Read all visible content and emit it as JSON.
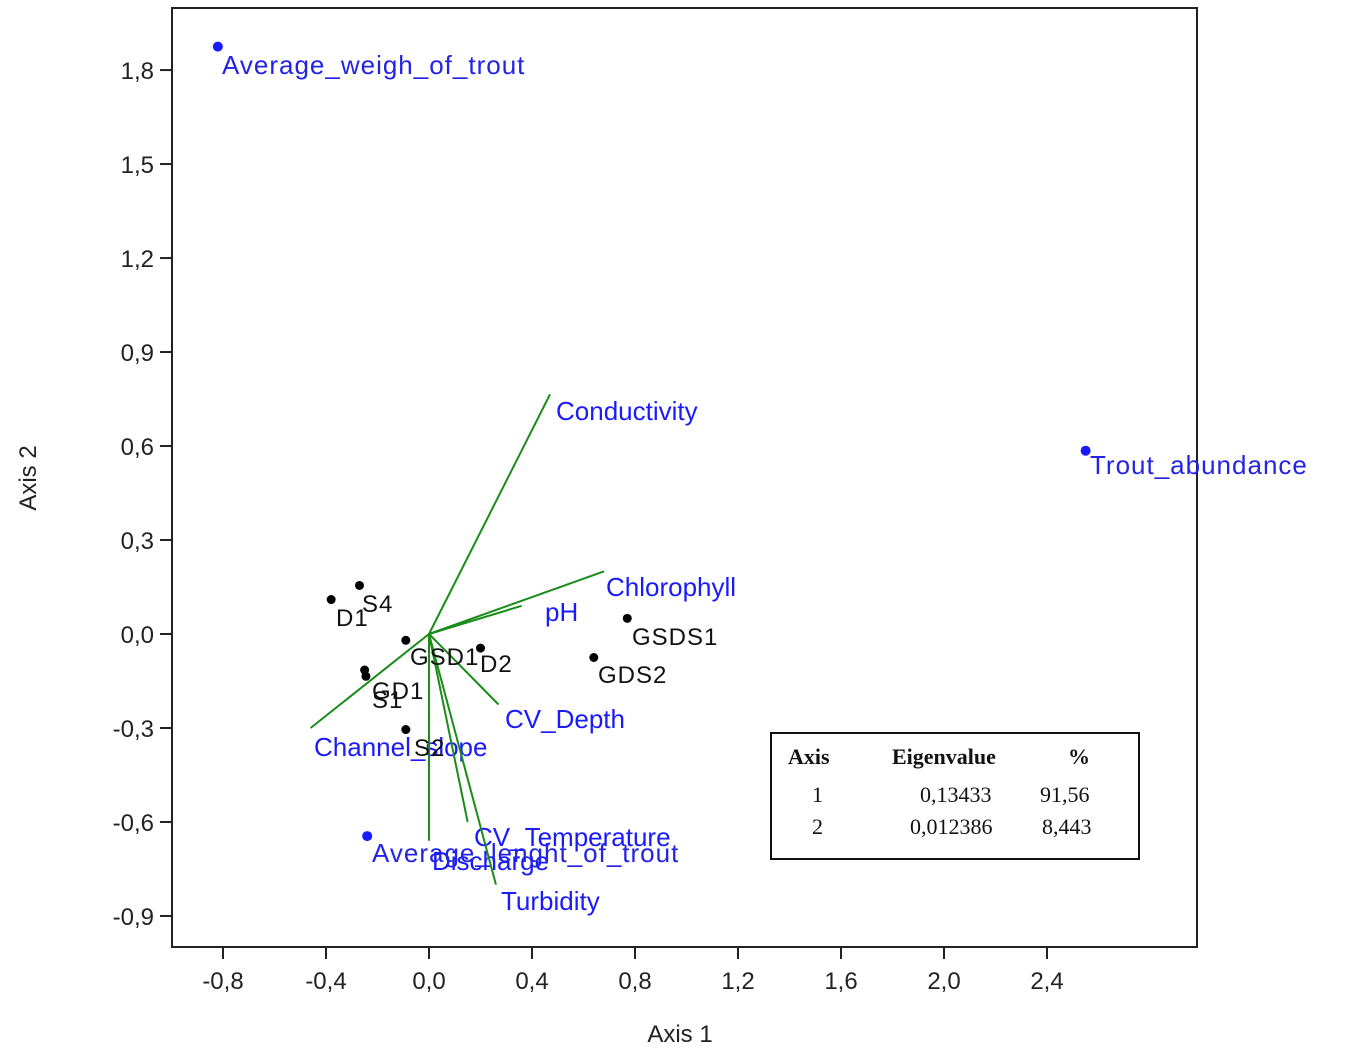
{
  "chart_data": {
    "type": "scatter",
    "subtype": "CCA biplot",
    "xlabel": "Axis 1",
    "ylabel": "Axis 2",
    "xlim": [
      -1.0,
      3.0
    ],
    "ylim": [
      -1.0,
      1.95
    ],
    "xticks": [
      "-0,8",
      "-0,4",
      "0,0",
      "0,4",
      "0,8",
      "1,2",
      "1,6",
      "2,0",
      "2,4"
    ],
    "xtick_values": [
      -0.8,
      -0.4,
      0.0,
      0.4,
      0.8,
      1.2,
      1.6,
      2.0,
      2.4
    ],
    "yticks": [
      "1,8",
      "1,5",
      "1,2",
      "0,9",
      "0,6",
      "0,3",
      "0,0",
      "-0,3",
      "-0,6",
      "-0,9"
    ],
    "ytick_values": [
      1.8,
      1.5,
      1.2,
      0.9,
      0.6,
      0.3,
      0.0,
      -0.3,
      -0.6,
      -0.9
    ],
    "grid": false,
    "colors": {
      "sites": "#000000",
      "species": "#1a1aff",
      "vectors": "#1a8c1a",
      "labels": "#1a1aff"
    },
    "sites": [
      {
        "label": "S4",
        "x": -0.27,
        "y": 0.155
      },
      {
        "label": "D1",
        "x": -0.38,
        "y": 0.11
      },
      {
        "label": "GSD1",
        "x": -0.09,
        "y": -0.02
      },
      {
        "label": "D2",
        "x": 0.2,
        "y": -0.045
      },
      {
        "label": "GD1",
        "x": -0.25,
        "y": -0.115
      },
      {
        "label": "S1",
        "x": -0.245,
        "y": -0.135
      },
      {
        "label": "S2",
        "x": -0.09,
        "y": -0.305
      },
      {
        "label": "GSDS1",
        "x": 0.77,
        "y": 0.05
      },
      {
        "label": "GDS2",
        "x": 0.64,
        "y": -0.075
      }
    ],
    "species": [
      {
        "label": "Average_weigh_of_trout",
        "x": -0.82,
        "y": 1.875
      },
      {
        "label": "Trout_abundance",
        "x": 2.55,
        "y": 0.585
      },
      {
        "label": "Average_lenght_of_trout",
        "x": -0.24,
        "y": -0.645
      }
    ],
    "vectors": [
      {
        "label": "Conductivity",
        "x": 0.47,
        "y": 0.765
      },
      {
        "label": "Chlorophyll",
        "x": 0.68,
        "y": 0.2
      },
      {
        "label": "pH",
        "x": 0.36,
        "y": 0.09
      },
      {
        "label": "CV_Depth",
        "x": 0.27,
        "y": -0.225
      },
      {
        "label": "Channel_slope",
        "x": -0.46,
        "y": -0.3
      },
      {
        "label": "CV_Temperature",
        "x": 0.15,
        "y": -0.6
      },
      {
        "label": "Discharge",
        "x": 0.0,
        "y": -0.66
      },
      {
        "label": "Turbidity",
        "x": 0.26,
        "y": -0.8
      }
    ]
  },
  "eigen_table": {
    "headers": [
      "Axis",
      "Eigenvalue",
      "%"
    ],
    "rows": [
      [
        "1",
        "0,13433",
        "91,56"
      ],
      [
        "2",
        "0,012386",
        "8,443"
      ]
    ]
  }
}
